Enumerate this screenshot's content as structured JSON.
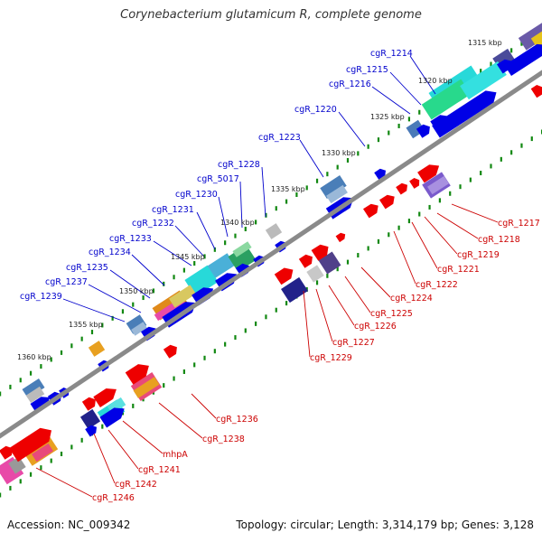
{
  "title": "Corynebacterium glutamicum R, complete genome",
  "accession": "Accession: NC_009342",
  "topology": "Topology: circular; Length: 3,314,179 bp; Genes: 3,128",
  "colors": {
    "backbone": "#808080",
    "plus_label": "#0000cc",
    "minus_label": "#cc0000",
    "tick": "#118811"
  },
  "kbp_ticks": [
    "1315 kbp",
    "1320 kbp",
    "1325 kbp",
    "1330 kbp",
    "1335 kbp",
    "1340 kbp",
    "1345 kbp",
    "1350 kbp",
    "1355 kbp",
    "1360 kbp"
  ],
  "plus_strand_labels": [
    "cgR_1214",
    "cgR_1215",
    "cgR_1216",
    "cgR_1220",
    "cgR_1223",
    "cgR_1228",
    "cgR_5017",
    "cgR_1230",
    "cgR_1231",
    "cgR_1232",
    "cgR_1233",
    "cgR_1234",
    "cgR_1235",
    "cgR_1237",
    "cgR_1239"
  ],
  "minus_strand_labels": [
    "cgR_1217",
    "cgR_1218",
    "cgR_1219",
    "cgR_1221",
    "cgR_1222",
    "cgR_1224",
    "cgR_1225",
    "cgR_1226",
    "cgR_1227",
    "cgR_1229",
    "cgR_1236",
    "cgR_1238",
    "mhpA",
    "cgR_1241",
    "cgR_1242",
    "cgR_1246"
  ]
}
